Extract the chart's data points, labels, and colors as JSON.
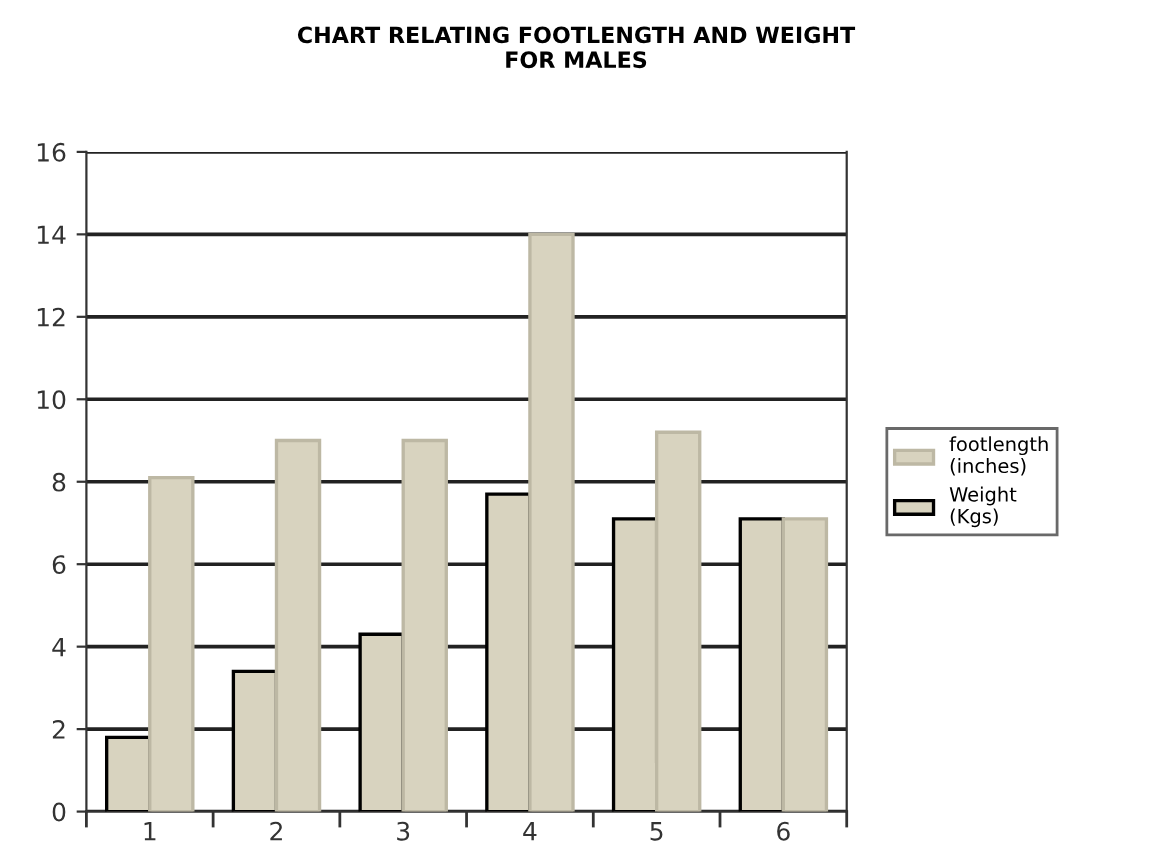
{
  "chart_data": {
    "type": "bar",
    "title": "CHART RELATING FOOTLENGTH AND WEIGHT\nFOR MALES",
    "categories": [
      "1",
      "2",
      "3",
      "4",
      "5",
      "6"
    ],
    "series": [
      {
        "name": "Weight\n(Kgs)",
        "color": "#d8d3bf",
        "values": [
          1.8,
          3.4,
          4.3,
          7.7,
          7.1,
          7.1
        ]
      },
      {
        "name": "footlength\n(inches)",
        "color": "#d8d3bf",
        "values": [
          8.1,
          9.0,
          9.0,
          14.0,
          9.2,
          7.1
        ]
      }
    ],
    "ylim": [
      0,
      16
    ],
    "yticks": [
      0,
      2,
      4,
      6,
      8,
      10,
      12,
      14,
      16
    ],
    "grid": "y",
    "legend": "right"
  }
}
